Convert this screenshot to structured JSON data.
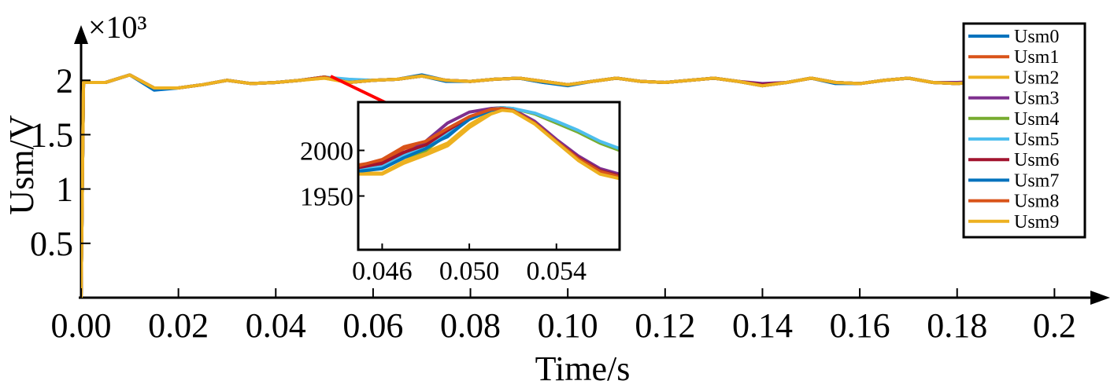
{
  "chart_data": [
    {
      "type": "line",
      "x_label": "Time/s",
      "y_label": "Usm/V",
      "y_multiplier": "×10³",
      "xlim": [
        0,
        0.209
      ],
      "ylim": [
        0,
        2.45
      ],
      "xticks": [
        {
          "value": 0,
          "label": "0.00"
        },
        0.02,
        0.04,
        0.06,
        0.08,
        {
          "value": 0.1,
          "label": "0.10"
        },
        0.12,
        0.14,
        0.16,
        0.18,
        0.2
      ],
      "yticks": [
        0.5,
        1,
        1.5,
        2
      ],
      "legend": "upper right",
      "x": [
        0,
        0.0005,
        0.005,
        0.01,
        0.015,
        0.02,
        0.025,
        0.03,
        0.035,
        0.04,
        0.045,
        0.05,
        0.055,
        0.06,
        0.065,
        0.07,
        0.075,
        0.08,
        0.085,
        0.09,
        0.095,
        0.1,
        0.105,
        0.11,
        0.115,
        0.12,
        0.125,
        0.13,
        0.135,
        0.14,
        0.145,
        0.15,
        0.155,
        0.16,
        0.165,
        0.17,
        0.175,
        0.18,
        0.185
      ],
      "series": [
        {
          "name": "Usm0",
          "color": "#0072BD",
          "values": [
            0,
            1.98,
            1.98,
            2.05,
            1.91,
            1.93,
            1.96,
            2.0,
            1.97,
            1.98,
            2.0,
            2.03,
            1.98,
            2.0,
            2.01,
            2.05,
            2.0,
            1.99,
            2.01,
            2.02,
            1.98,
            1.95,
            1.99,
            2.02,
            1.99,
            1.98,
            2.0,
            2.02,
            1.99,
            1.96,
            1.98,
            2.02,
            1.97,
            1.97,
            2.0,
            2.02,
            1.98,
            1.97,
            1.99
          ]
        },
        {
          "name": "Usm1",
          "color": "#D95319",
          "values": [
            0,
            1.98,
            1.98,
            2.05,
            1.93,
            1.93,
            1.96,
            2.0,
            1.97,
            1.98,
            2.0,
            2.03,
            1.98,
            2.0,
            2.01,
            2.04,
            2.0,
            1.99,
            2.01,
            2.02,
            1.99,
            1.96,
            1.99,
            2.02,
            1.99,
            1.98,
            2.0,
            2.02,
            1.99,
            1.95,
            1.98,
            2.02,
            1.98,
            1.97,
            2.0,
            2.02,
            1.98,
            1.97,
            1.99
          ]
        },
        {
          "name": "Usm2",
          "color": "#EDB120",
          "values": [
            0,
            1.98,
            1.98,
            2.05,
            1.93,
            1.93,
            1.96,
            2.0,
            1.97,
            1.98,
            2.0,
            2.02,
            1.98,
            2.0,
            2.01,
            2.04,
            2.0,
            1.99,
            2.01,
            2.02,
            1.99,
            1.96,
            1.99,
            2.02,
            1.99,
            1.98,
            2.0,
            2.02,
            1.99,
            1.95,
            1.98,
            2.02,
            1.98,
            1.97,
            2.0,
            2.02,
            1.98,
            1.97,
            1.99
          ]
        },
        {
          "name": "Usm3",
          "color": "#7E2F8E",
          "values": [
            0,
            1.98,
            1.98,
            2.05,
            1.93,
            1.93,
            1.96,
            2.0,
            1.97,
            1.98,
            2.0,
            2.03,
            1.98,
            2.0,
            2.01,
            2.04,
            2.0,
            1.99,
            2.01,
            2.02,
            1.99,
            1.96,
            1.99,
            2.02,
            1.99,
            1.98,
            2.0,
            2.02,
            1.99,
            1.97,
            1.98,
            2.02,
            1.98,
            1.97,
            2.0,
            2.02,
            1.98,
            1.98,
            1.99
          ]
        },
        {
          "name": "Usm4",
          "color": "#77AC30",
          "values": [
            0,
            1.98,
            1.98,
            2.05,
            1.93,
            1.93,
            1.96,
            2.0,
            1.97,
            1.98,
            2.0,
            2.03,
            2.0,
            2.0,
            2.01,
            2.04,
            2.0,
            1.99,
            2.01,
            2.02,
            1.99,
            1.96,
            1.99,
            2.02,
            1.99,
            1.98,
            2.0,
            2.02,
            1.99,
            1.95,
            1.98,
            2.02,
            1.98,
            1.97,
            2.0,
            2.02,
            1.98,
            1.97,
            1.99
          ]
        },
        {
          "name": "Usm5",
          "color": "#4DBEEE",
          "values": [
            0,
            1.98,
            1.98,
            2.05,
            1.93,
            1.93,
            1.96,
            2.0,
            1.97,
            1.98,
            2.0,
            2.03,
            2.01,
            2.0,
            2.01,
            2.04,
            2.0,
            1.99,
            2.01,
            2.02,
            1.99,
            1.96,
            1.99,
            2.02,
            1.99,
            1.98,
            2.0,
            2.02,
            1.99,
            1.95,
            1.98,
            2.02,
            1.98,
            1.97,
            2.0,
            2.02,
            1.98,
            1.97,
            1.99
          ]
        },
        {
          "name": "Usm6",
          "color": "#A2142F",
          "values": [
            0,
            1.98,
            1.98,
            2.05,
            1.93,
            1.93,
            1.96,
            2.0,
            1.97,
            1.98,
            2.0,
            2.03,
            1.98,
            2.0,
            2.01,
            2.04,
            2.0,
            1.99,
            2.01,
            2.02,
            1.99,
            1.96,
            1.99,
            2.02,
            1.99,
            1.98,
            2.0,
            2.02,
            1.99,
            1.96,
            1.98,
            2.02,
            1.98,
            1.97,
            2.0,
            2.02,
            1.98,
            1.97,
            1.99
          ]
        },
        {
          "name": "Usm7",
          "color": "#0072BD",
          "values": [
            0,
            1.98,
            1.98,
            2.05,
            1.92,
            1.93,
            1.96,
            2.0,
            1.97,
            1.98,
            2.0,
            2.03,
            1.98,
            2.0,
            2.01,
            2.04,
            1.99,
            1.99,
            2.01,
            2.02,
            1.98,
            1.96,
            1.99,
            2.02,
            1.99,
            1.98,
            2.0,
            2.02,
            1.99,
            1.95,
            1.98,
            2.02,
            1.98,
            1.97,
            2.0,
            2.02,
            1.98,
            1.97,
            1.99
          ]
        },
        {
          "name": "Usm8",
          "color": "#D95319",
          "values": [
            0,
            1.98,
            1.98,
            2.05,
            1.93,
            1.93,
            1.96,
            2.0,
            1.97,
            1.98,
            2.0,
            2.03,
            1.98,
            2.0,
            2.01,
            2.04,
            2.0,
            1.99,
            2.01,
            2.02,
            1.99,
            1.96,
            1.99,
            2.02,
            1.99,
            1.98,
            2.0,
            2.02,
            1.99,
            1.95,
            1.98,
            2.02,
            1.98,
            1.97,
            2.0,
            2.02,
            1.98,
            1.97,
            1.99
          ]
        },
        {
          "name": "Usm9",
          "color": "#EDB120",
          "values": [
            0,
            1.98,
            1.98,
            2.05,
            1.93,
            1.93,
            1.96,
            2.0,
            1.97,
            1.98,
            2.0,
            2.02,
            1.98,
            2.0,
            2.01,
            2.04,
            2.0,
            1.99,
            2.01,
            2.02,
            1.99,
            1.96,
            1.99,
            2.02,
            1.99,
            1.98,
            2.0,
            2.02,
            1.99,
            1.95,
            1.98,
            2.02,
            1.98,
            1.97,
            2.0,
            2.02,
            1.98,
            1.97,
            1.99
          ]
        }
      ]
    },
    {
      "type": "line",
      "xlim": [
        0.0449,
        0.0569
      ],
      "ylim": [
        1891,
        2053
      ],
      "xticks": [
        0.046,
        {
          "value": 0.05,
          "label": "0.050"
        },
        0.054
      ],
      "yticks": [
        1950,
        2000
      ],
      "x": [
        0.0449,
        0.046,
        0.047,
        0.048,
        0.049,
        0.05,
        0.051,
        0.0515,
        0.052,
        0.053,
        0.054,
        0.055,
        0.056,
        0.0569
      ],
      "series": [
        {
          "values": [
            1982,
            1985,
            1995,
            2005,
            2015,
            2035,
            2045,
            2046,
            2044,
            2030,
            2010,
            1992,
            1978,
            1972
          ]
        },
        {
          "values": [
            1984,
            1988,
            2002,
            2008,
            2020,
            2036,
            2045,
            2046,
            2044,
            2030,
            2010,
            1992,
            1978,
            1972
          ]
        },
        {
          "values": [
            1975,
            1975,
            1988,
            1998,
            2008,
            2028,
            2042,
            2045,
            2043,
            2030,
            2010,
            1990,
            1975,
            1970
          ]
        },
        {
          "values": [
            1980,
            1985,
            1995,
            2010,
            2030,
            2042,
            2046,
            2047,
            2045,
            2032,
            2012,
            1994,
            1980,
            1974
          ]
        },
        {
          "values": [
            1978,
            1980,
            1992,
            2000,
            2018,
            2035,
            2045,
            2047,
            2046,
            2040,
            2030,
            2020,
            2008,
            2000
          ]
        },
        {
          "values": [
            1979,
            1982,
            1994,
            2004,
            2020,
            2036,
            2045,
            2047,
            2046,
            2041,
            2032,
            2022,
            2010,
            2002
          ]
        },
        {
          "values": [
            1981,
            1986,
            1998,
            2006,
            2022,
            2036,
            2045,
            2046,
            2044,
            2030,
            2010,
            1992,
            1978,
            1972
          ]
        },
        {
          "values": [
            1977,
            1980,
            1992,
            2002,
            2016,
            2034,
            2044,
            2046,
            2044,
            2030,
            2010,
            1991,
            1977,
            1971
          ]
        },
        {
          "values": [
            1983,
            1990,
            2004,
            2010,
            2024,
            2037,
            2045,
            2046,
            2044,
            2030,
            2010,
            1991,
            1977,
            1971
          ]
        },
        {
          "values": [
            1974,
            1974,
            1986,
            1995,
            2005,
            2025,
            2040,
            2044,
            2043,
            2029,
            2009,
            1989,
            1974,
            1969
          ]
        }
      ]
    }
  ]
}
